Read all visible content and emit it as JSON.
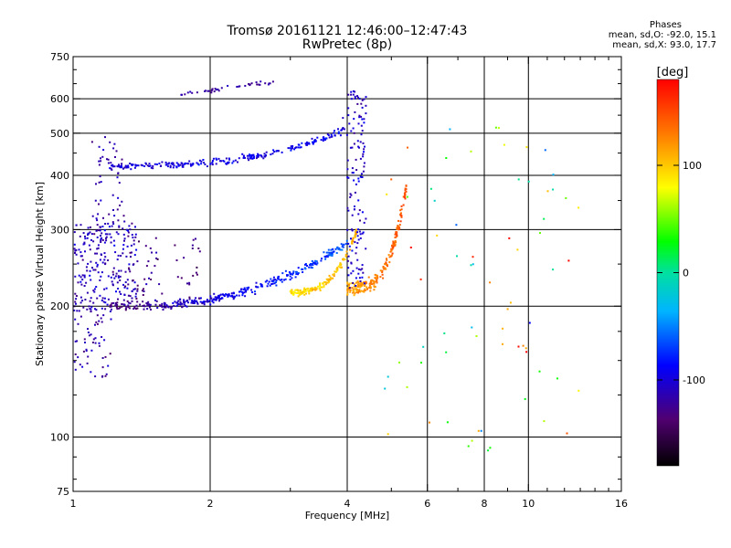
{
  "header": {
    "title_line1": "Tromsø 20161121 12:46:00–12:47:43",
    "title_line2": "RwPretec (8p)"
  },
  "phases": {
    "title": "Phases",
    "o_line": "mean, sd,O: -92.0, 15.1",
    "x_line": "mean, sd,X:  93.0, 17.7"
  },
  "colorbar": {
    "unit": "[deg]",
    "range": [
      -180,
      180
    ],
    "ticks": [
      {
        "value": 100,
        "label": "100"
      },
      {
        "value": 0,
        "label": "0"
      },
      {
        "value": -100,
        "label": "-100"
      }
    ]
  },
  "chart_data": {
    "type": "scatter",
    "title": "Tromsø 20161121 12:46:00–12:47:43",
    "subtitle": "RwPretec (8p)",
    "xlabel": "Frequency [MHz]",
    "ylabel": "Stationary phase Virtual Height [km]",
    "x_scale": "log",
    "y_scale": "log",
    "xlim": [
      1,
      16
    ],
    "ylim": [
      75,
      750
    ],
    "xticks": [
      {
        "value": 1,
        "label": "1"
      },
      {
        "value": 2,
        "label": "2"
      },
      {
        "value": 4,
        "label": "4"
      },
      {
        "value": 6,
        "label": "6"
      },
      {
        "value": 8,
        "label": "8"
      },
      {
        "value": 10,
        "label": "10"
      },
      {
        "value": 16,
        "label": "16"
      }
    ],
    "xgrid": [
      2,
      4,
      6,
      8,
      10
    ],
    "xminor": [
      3,
      5,
      7,
      9,
      11,
      12,
      13,
      14,
      15
    ],
    "yticks": [
      {
        "value": 75,
        "label": "75"
      },
      {
        "value": 100,
        "label": "100"
      },
      {
        "value": 200,
        "label": "200"
      },
      {
        "value": 300,
        "label": "300"
      },
      {
        "value": 400,
        "label": "400"
      },
      {
        "value": 500,
        "label": "500"
      },
      {
        "value": 600,
        "label": "600"
      },
      {
        "value": 750,
        "label": "750"
      }
    ],
    "ygrid": [
      100,
      200,
      300,
      400,
      500,
      600
    ],
    "yminor": [
      80,
      90,
      125,
      150,
      175,
      250,
      350,
      450,
      550,
      650,
      700
    ],
    "grid": true,
    "color_axis": "phase [deg]",
    "series": [
      {
        "mode": "ribbon",
        "f_start": 1.0,
        "f_end": 1.38,
        "h_bottom": 200,
        "h_top": 310,
        "phase_mean": -110,
        "density": 7
      },
      {
        "mode": "ribbon",
        "f_start": 1.0,
        "f_end": 1.22,
        "h_bottom": 135,
        "h_top": 200,
        "phase_mean": -115,
        "density": 4
      },
      {
        "mode": "ribbon",
        "f_start": 1.1,
        "f_end": 1.3,
        "h_bottom": 300,
        "h_top": 490,
        "phase_mean": -115,
        "density": 3
      },
      {
        "mode": "ribbon",
        "f_start": 1.3,
        "f_end": 1.9,
        "h_bottom": 205,
        "h_top": 290,
        "phase_mean": -130,
        "density": 2
      },
      {
        "mode": "curve",
        "f_start": 1.2,
        "f_end": 4.0,
        "h_start": 200,
        "h_end": 280,
        "curve_power": 2.6,
        "spread": 0.02,
        "count": 340,
        "phase_mean": -130,
        "phase_end": -60
      },
      {
        "mode": "curve",
        "f_start": 3.0,
        "f_end": 4.2,
        "h_start": 215,
        "h_end": 300,
        "curve_power": 3.0,
        "spread": 0.015,
        "count": 150,
        "phase_mean": 90,
        "phase_end": 110
      },
      {
        "mode": "curve",
        "f_start": 4.0,
        "f_end": 5.4,
        "h_start": 220,
        "h_end": 380,
        "curve_power": 3.5,
        "spread": 0.03,
        "count": 220,
        "phase_mean": 110,
        "phase_end": 150
      },
      {
        "mode": "curve",
        "f_start": 1.2,
        "f_end": 3.95,
        "h_start": 420,
        "h_end": 510,
        "curve_power": 2.8,
        "spread": 0.015,
        "count": 240,
        "phase_mean": -100,
        "phase_end": -90
      },
      {
        "mode": "ribbon",
        "f_start": 4.0,
        "f_end": 4.4,
        "h_bottom": 220,
        "h_top": 630,
        "phase_mean": -105,
        "density": 6
      },
      {
        "mode": "ribbon",
        "f_start": 3.9,
        "f_end": 4.05,
        "h_bottom": 480,
        "h_top": 560,
        "phase_mean": -110,
        "density": 2
      },
      {
        "mode": "line",
        "f_start": 1.7,
        "f_end": 2.8,
        "h_start": 610,
        "h_end": 660,
        "count": 40,
        "phase_mean": -120
      },
      {
        "mode": "scatter",
        "f_start": 4.8,
        "f_end": 13.0,
        "h_low": 90,
        "h_high": 520,
        "count": 70,
        "phase_mean": 60,
        "phase_sd": 110
      }
    ]
  }
}
